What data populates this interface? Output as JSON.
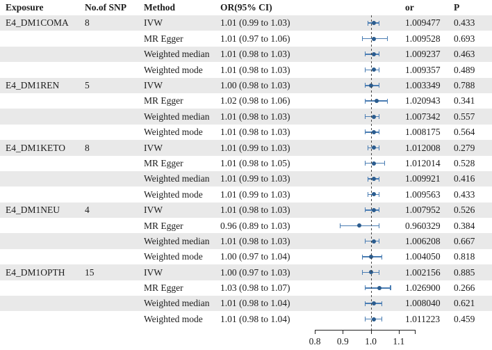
{
  "header": {
    "exposure": "Exposure",
    "nsnp": "No.of SNP",
    "method": "Method",
    "orci": "OR(95% CI)",
    "or": "or",
    "p": "P"
  },
  "colors": {
    "row_shade": "#e9e9e9",
    "ci_line": "#4a7db3",
    "ci_point": "#2b5c8e",
    "ref_line": "#444444",
    "axis": "#222222",
    "text": "#1c1c1c"
  },
  "chart_data": {
    "type": "scatter",
    "subtype": "forest-plot",
    "axis": {
      "min": 0.8,
      "max": 1.16,
      "ticks": [
        0.8,
        0.9,
        1.0,
        1.1
      ],
      "tick_labels": [
        "0.8",
        "0.9",
        "1.0",
        "1.1"
      ],
      "ref_line": 1.0
    },
    "rows": [
      {
        "exposure": "E4_DM1COMA",
        "nsnp": "8",
        "method": "IVW",
        "orci": "1.01 (0.99 to 1.03)",
        "est": 1.01,
        "lo": 0.99,
        "hi": 1.03,
        "or": "1.009477",
        "p": "0.433"
      },
      {
        "exposure": "",
        "nsnp": "",
        "method": "MR Egger",
        "orci": "1.01 (0.97 to 1.06)",
        "est": 1.01,
        "lo": 0.97,
        "hi": 1.06,
        "or": "1.009528",
        "p": "0.693"
      },
      {
        "exposure": "",
        "nsnp": "",
        "method": "Weighted median",
        "orci": "1.01 (0.98 to 1.03)",
        "est": 1.01,
        "lo": 0.98,
        "hi": 1.03,
        "or": "1.009237",
        "p": "0.463"
      },
      {
        "exposure": "",
        "nsnp": "",
        "method": "Weighted mode",
        "orci": "1.01 (0.98 to 1.03)",
        "est": 1.01,
        "lo": 0.98,
        "hi": 1.03,
        "or": "1.009357",
        "p": "0.489"
      },
      {
        "exposure": "E4_DM1REN",
        "nsnp": "5",
        "method": "IVW",
        "orci": "1.00 (0.98 to 1.03)",
        "est": 1.0,
        "lo": 0.98,
        "hi": 1.03,
        "or": "1.003349",
        "p": "0.788"
      },
      {
        "exposure": "",
        "nsnp": "",
        "method": "MR Egger",
        "orci": "1.02 (0.98 to 1.06)",
        "est": 1.02,
        "lo": 0.98,
        "hi": 1.06,
        "or": "1.020943",
        "p": "0.341"
      },
      {
        "exposure": "",
        "nsnp": "",
        "method": "Weighted median",
        "orci": "1.01 (0.98 to 1.03)",
        "est": 1.01,
        "lo": 0.98,
        "hi": 1.03,
        "or": "1.007342",
        "p": "0.557"
      },
      {
        "exposure": "",
        "nsnp": "",
        "method": "Weighted mode",
        "orci": "1.01 (0.98 to 1.03)",
        "est": 1.01,
        "lo": 0.98,
        "hi": 1.03,
        "or": "1.008175",
        "p": "0.564"
      },
      {
        "exposure": "E4_DM1KETO",
        "nsnp": "8",
        "method": "IVW",
        "orci": "1.01 (0.99 to 1.03)",
        "est": 1.01,
        "lo": 0.99,
        "hi": 1.03,
        "or": "1.012008",
        "p": "0.279"
      },
      {
        "exposure": "",
        "nsnp": "",
        "method": "MR Egger",
        "orci": "1.01 (0.98 to 1.05)",
        "est": 1.01,
        "lo": 0.98,
        "hi": 1.05,
        "or": "1.012014",
        "p": "0.528"
      },
      {
        "exposure": "",
        "nsnp": "",
        "method": "Weighted median",
        "orci": "1.01 (0.99 to 1.03)",
        "est": 1.01,
        "lo": 0.99,
        "hi": 1.03,
        "or": "1.009921",
        "p": "0.416"
      },
      {
        "exposure": "",
        "nsnp": "",
        "method": "Weighted mode",
        "orci": "1.01 (0.99 to 1.03)",
        "est": 1.01,
        "lo": 0.99,
        "hi": 1.03,
        "or": "1.009563",
        "p": "0.433"
      },
      {
        "exposure": "E4_DM1NEU",
        "nsnp": "4",
        "method": "IVW",
        "orci": "1.01 (0.98 to 1.03)",
        "est": 1.01,
        "lo": 0.98,
        "hi": 1.03,
        "or": "1.007952",
        "p": "0.526"
      },
      {
        "exposure": "",
        "nsnp": "",
        "method": "MR Egger",
        "orci": "0.96 (0.89 to 1.03)",
        "est": 0.96,
        "lo": 0.89,
        "hi": 1.03,
        "or": "0.960329",
        "p": "0.384"
      },
      {
        "exposure": "",
        "nsnp": "",
        "method": "Weighted median",
        "orci": "1.01 (0.98 to 1.03)",
        "est": 1.01,
        "lo": 0.98,
        "hi": 1.03,
        "or": "1.006208",
        "p": "0.667"
      },
      {
        "exposure": "",
        "nsnp": "",
        "method": "Weighted mode",
        "orci": "1.00 (0.97 to 1.04)",
        "est": 1.0,
        "lo": 0.97,
        "hi": 1.04,
        "or": "1.004050",
        "p": "0.818"
      },
      {
        "exposure": "E4_DM1OPTH",
        "nsnp": "15",
        "method": "IVW",
        "orci": "1.00 (0.97 to 1.03)",
        "est": 1.0,
        "lo": 0.97,
        "hi": 1.03,
        "or": "1.002156",
        "p": "0.885"
      },
      {
        "exposure": "",
        "nsnp": "",
        "method": "MR Egger",
        "orci": "1.03 (0.98 to 1.07)",
        "est": 1.03,
        "lo": 0.98,
        "hi": 1.07,
        "or": "1.026900",
        "p": "0.266"
      },
      {
        "exposure": "",
        "nsnp": "",
        "method": "Weighted median",
        "orci": "1.01 (0.98 to 1.04)",
        "est": 1.01,
        "lo": 0.98,
        "hi": 1.04,
        "or": "1.008040",
        "p": "0.621"
      },
      {
        "exposure": "",
        "nsnp": "",
        "method": "Weighted mode",
        "orci": "1.01 (0.98 to 1.04)",
        "est": 1.01,
        "lo": 0.98,
        "hi": 1.04,
        "or": "1.011223",
        "p": "0.459"
      }
    ]
  }
}
